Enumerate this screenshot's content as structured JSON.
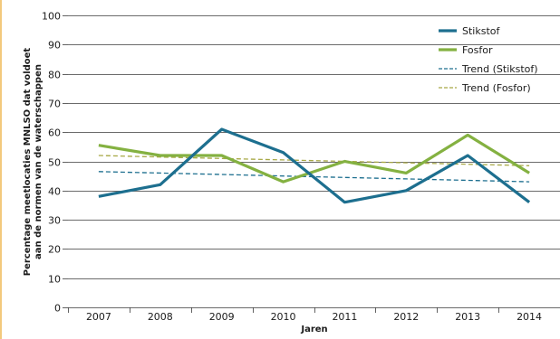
{
  "chart_data": {
    "type": "line",
    "title": "",
    "xlabel": "Jaren",
    "ylabel_lines": [
      "Percentage meetlocaties MNLSO dat voldoet",
      "aan de normen van de waterschappen"
    ],
    "categories": [
      "2007",
      "2008",
      "2009",
      "2010",
      "2011",
      "2012",
      "2013",
      "2014"
    ],
    "ylim": [
      0,
      100
    ],
    "yticks": [
      0,
      10,
      20,
      30,
      40,
      50,
      60,
      70,
      80,
      90,
      100
    ],
    "grid": true,
    "legend_position": "top-right",
    "series": [
      {
        "name": "Stikstof",
        "style": "solid",
        "color": "#1d6f8f",
        "values": [
          38,
          42,
          61,
          53,
          36,
          40,
          52,
          36
        ]
      },
      {
        "name": "Fosfor",
        "style": "solid",
        "color": "#84b141",
        "values": [
          55.5,
          52,
          52,
          43,
          50,
          46,
          59,
          46
        ]
      },
      {
        "name": "Trend (Stikstof)",
        "style": "dashed",
        "color": "#1d6f8f",
        "values": [
          46.5,
          46,
          45.5,
          45,
          44.5,
          44,
          43.5,
          43
        ]
      },
      {
        "name": "Trend (Fosfor)",
        "style": "dashed",
        "color": "#a7a845",
        "values": [
          52,
          51.5,
          51,
          50.5,
          50,
          49.5,
          49,
          48.5
        ]
      }
    ]
  },
  "colors": {
    "accent_bar": "#f3c97d",
    "gridline": "#3a3a3a",
    "text": "#1b1b1b"
  }
}
